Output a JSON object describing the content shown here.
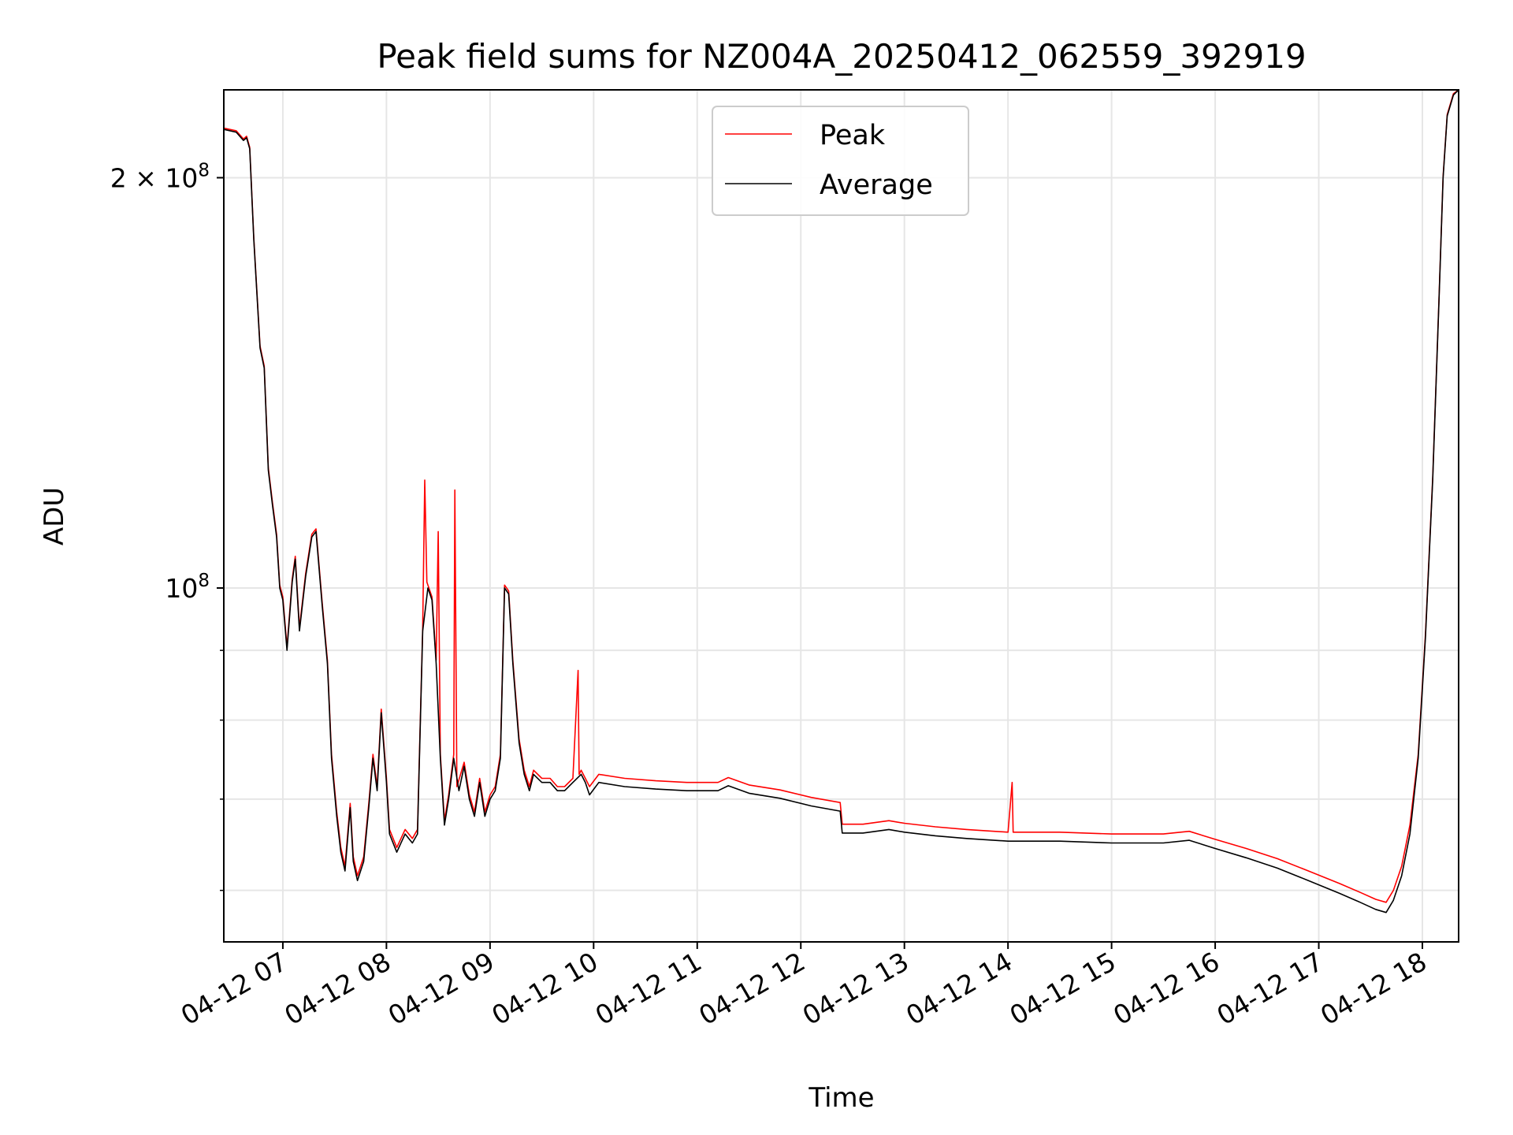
{
  "chart_data": {
    "type": "line",
    "title": "Peak field sums for NZ004A_20250412_062559_392919",
    "xlabel": "Time",
    "ylabel": "ADU",
    "y_scale": "log",
    "grid": true,
    "legend_position": "top-center",
    "x_unit": "time of day on 04-12 (hours)",
    "xlim": [
      6.43,
      18.35
    ],
    "ylim": [
      55000000,
      232000000
    ],
    "x_ticks": [
      {
        "value": 7,
        "label": "04-12 07"
      },
      {
        "value": 8,
        "label": "04-12 08"
      },
      {
        "value": 9,
        "label": "04-12 09"
      },
      {
        "value": 10,
        "label": "04-12 10"
      },
      {
        "value": 11,
        "label": "04-12 11"
      },
      {
        "value": 12,
        "label": "04-12 12"
      },
      {
        "value": 13,
        "label": "04-12 13"
      },
      {
        "value": 14,
        "label": "04-12 14"
      },
      {
        "value": 15,
        "label": "04-12 15"
      },
      {
        "value": 16,
        "label": "04-12 16"
      },
      {
        "value": 17,
        "label": "04-12 17"
      },
      {
        "value": 18,
        "label": "04-12 18"
      }
    ],
    "y_major_ticks": [
      {
        "value": 100000000,
        "base": "10",
        "exp": "8",
        "mantissa": ""
      },
      {
        "value": 200000000,
        "base": "10",
        "exp": "8",
        "mantissa": "2 × "
      }
    ],
    "y_minor_ticks": [
      60000000,
      70000000,
      80000000,
      90000000
    ],
    "series": [
      {
        "name": "Average",
        "color": "#000000",
        "points": [
          [
            6.43,
            217000000
          ],
          [
            6.55,
            216000000
          ],
          [
            6.62,
            213000000
          ],
          [
            6.65,
            214000000
          ],
          [
            6.68,
            210000000
          ],
          [
            6.72,
            180000000
          ],
          [
            6.78,
            150000000
          ],
          [
            6.82,
            145000000
          ],
          [
            6.86,
            122000000
          ],
          [
            6.9,
            115000000
          ],
          [
            6.94,
            109000000
          ],
          [
            6.97,
            100000000
          ],
          [
            7.0,
            98000000
          ],
          [
            7.04,
            90000000
          ],
          [
            7.09,
            101000000
          ],
          [
            7.12,
            105000000
          ],
          [
            7.16,
            93000000
          ],
          [
            7.22,
            102000000
          ],
          [
            7.28,
            109000000
          ],
          [
            7.32,
            110000000
          ],
          [
            7.38,
            97000000
          ],
          [
            7.43,
            88000000
          ],
          [
            7.47,
            75000000
          ],
          [
            7.52,
            68000000
          ],
          [
            7.56,
            64000000
          ],
          [
            7.6,
            62000000
          ],
          [
            7.65,
            69000000
          ],
          [
            7.68,
            63000000
          ],
          [
            7.72,
            61000000
          ],
          [
            7.78,
            63000000
          ],
          [
            7.83,
            69000000
          ],
          [
            7.87,
            75000000
          ],
          [
            7.91,
            71000000
          ],
          [
            7.95,
            81000000
          ],
          [
            8.0,
            72000000
          ],
          [
            8.03,
            66000000
          ],
          [
            8.1,
            64000000
          ],
          [
            8.18,
            66000000
          ],
          [
            8.25,
            65000000
          ],
          [
            8.3,
            66000000
          ],
          [
            8.35,
            93000000
          ],
          [
            8.4,
            100000000
          ],
          [
            8.44,
            98000000
          ],
          [
            8.48,
            88000000
          ],
          [
            8.52,
            75000000
          ],
          [
            8.56,
            67000000
          ],
          [
            8.6,
            70000000
          ],
          [
            8.65,
            75000000
          ],
          [
            8.7,
            71000000
          ],
          [
            8.75,
            74000000
          ],
          [
            8.8,
            70000000
          ],
          [
            8.85,
            68000000
          ],
          [
            8.9,
            72000000
          ],
          [
            8.95,
            68000000
          ],
          [
            9.0,
            70000000
          ],
          [
            9.05,
            71000000
          ],
          [
            9.1,
            75000000
          ],
          [
            9.14,
            100000000
          ],
          [
            9.18,
            99000000
          ],
          [
            9.22,
            88000000
          ],
          [
            9.28,
            77000000
          ],
          [
            9.33,
            73000000
          ],
          [
            9.38,
            71000000
          ],
          [
            9.42,
            73000000
          ],
          [
            9.5,
            72000000
          ],
          [
            9.58,
            72000000
          ],
          [
            9.65,
            71000000
          ],
          [
            9.72,
            71000000
          ],
          [
            9.8,
            72000000
          ],
          [
            9.88,
            73000000
          ],
          [
            9.92,
            72000000
          ],
          [
            9.96,
            70500000
          ],
          [
            10.05,
            72000000
          ],
          [
            10.3,
            71500000
          ],
          [
            10.6,
            71200000
          ],
          [
            10.9,
            71000000
          ],
          [
            11.2,
            71000000
          ],
          [
            11.3,
            71600000
          ],
          [
            11.5,
            70700000
          ],
          [
            11.8,
            70100000
          ],
          [
            12.1,
            69200000
          ],
          [
            12.38,
            68600000
          ],
          [
            12.4,
            66100000
          ],
          [
            12.6,
            66100000
          ],
          [
            12.85,
            66500000
          ],
          [
            13.0,
            66200000
          ],
          [
            13.3,
            65800000
          ],
          [
            13.6,
            65500000
          ],
          [
            14.0,
            65200000
          ],
          [
            14.5,
            65200000
          ],
          [
            15.0,
            65000000
          ],
          [
            15.5,
            65000000
          ],
          [
            15.75,
            65300000
          ],
          [
            16.0,
            64400000
          ],
          [
            16.3,
            63400000
          ],
          [
            16.6,
            62300000
          ],
          [
            16.9,
            61000000
          ],
          [
            17.2,
            59700000
          ],
          [
            17.4,
            58800000
          ],
          [
            17.55,
            58100000
          ],
          [
            17.65,
            57800000
          ],
          [
            17.72,
            59000000
          ],
          [
            17.8,
            61500000
          ],
          [
            17.88,
            66000000
          ],
          [
            17.96,
            75000000
          ],
          [
            18.03,
            92000000
          ],
          [
            18.1,
            120000000
          ],
          [
            18.16,
            162000000
          ],
          [
            18.2,
            200000000
          ],
          [
            18.24,
            222000000
          ],
          [
            18.3,
            230000000
          ],
          [
            18.35,
            232000000
          ]
        ]
      },
      {
        "name": "Peak",
        "color": "#ff0000",
        "points": [
          [
            6.43,
            217500000
          ],
          [
            6.55,
            216500000
          ],
          [
            6.62,
            213500000
          ],
          [
            6.65,
            214500000
          ],
          [
            6.68,
            210500000
          ],
          [
            6.72,
            180500000
          ],
          [
            6.78,
            150500000
          ],
          [
            6.82,
            145500000
          ],
          [
            6.86,
            122500000
          ],
          [
            6.9,
            115500000
          ],
          [
            6.94,
            109500000
          ],
          [
            6.97,
            100500000
          ],
          [
            7.0,
            98500000
          ],
          [
            7.04,
            90500000
          ],
          [
            7.09,
            101500000
          ],
          [
            7.12,
            105500000
          ],
          [
            7.16,
            93500000
          ],
          [
            7.22,
            102500000
          ],
          [
            7.28,
            109500000
          ],
          [
            7.32,
            110500000
          ],
          [
            7.38,
            97500000
          ],
          [
            7.43,
            88500000
          ],
          [
            7.47,
            75500000
          ],
          [
            7.52,
            68500000
          ],
          [
            7.56,
            64500000
          ],
          [
            7.6,
            62500000
          ],
          [
            7.65,
            69500000
          ],
          [
            7.68,
            63500000
          ],
          [
            7.72,
            61500000
          ],
          [
            7.78,
            63500000
          ],
          [
            7.83,
            69500000
          ],
          [
            7.87,
            75500000
          ],
          [
            7.91,
            71500000
          ],
          [
            7.95,
            81500000
          ],
          [
            8.0,
            72500000
          ],
          [
            8.03,
            66500000
          ],
          [
            8.1,
            64500000
          ],
          [
            8.18,
            66500000
          ],
          [
            8.25,
            65500000
          ],
          [
            8.3,
            66500000
          ],
          [
            8.35,
            93500000
          ],
          [
            8.37,
            120000000
          ],
          [
            8.39,
            101000000
          ],
          [
            8.44,
            98500000
          ],
          [
            8.48,
            88500000
          ],
          [
            8.5,
            110000000
          ],
          [
            8.52,
            75500000
          ],
          [
            8.56,
            67500000
          ],
          [
            8.6,
            70500000
          ],
          [
            8.65,
            75500000
          ],
          [
            8.66,
            118000000
          ],
          [
            8.68,
            71500000
          ],
          [
            8.75,
            74500000
          ],
          [
            8.8,
            70500000
          ],
          [
            8.85,
            68500000
          ],
          [
            8.9,
            72500000
          ],
          [
            8.95,
            68500000
          ],
          [
            9.0,
            70500000
          ],
          [
            9.05,
            71500000
          ],
          [
            9.1,
            75500000
          ],
          [
            9.14,
            100500000
          ],
          [
            9.18,
            99500000
          ],
          [
            9.22,
            88500000
          ],
          [
            9.28,
            77500000
          ],
          [
            9.33,
            73500000
          ],
          [
            9.38,
            71500000
          ],
          [
            9.42,
            73500000
          ],
          [
            9.5,
            72500000
          ],
          [
            9.58,
            72500000
          ],
          [
            9.65,
            71500000
          ],
          [
            9.72,
            71500000
          ],
          [
            9.8,
            72500000
          ],
          [
            9.85,
            87000000
          ],
          [
            9.86,
            73000000
          ],
          [
            9.88,
            73500000
          ],
          [
            9.92,
            72500000
          ],
          [
            9.96,
            71500000
          ],
          [
            10.05,
            73000000
          ],
          [
            10.3,
            72500000
          ],
          [
            10.6,
            72200000
          ],
          [
            10.9,
            72000000
          ],
          [
            11.2,
            72000000
          ],
          [
            11.3,
            72600000
          ],
          [
            11.5,
            71700000
          ],
          [
            11.8,
            71100000
          ],
          [
            12.1,
            70200000
          ],
          [
            12.38,
            69600000
          ],
          [
            12.4,
            67100000
          ],
          [
            12.6,
            67100000
          ],
          [
            12.85,
            67500000
          ],
          [
            13.0,
            67200000
          ],
          [
            13.3,
            66800000
          ],
          [
            13.6,
            66500000
          ],
          [
            14.0,
            66200000
          ],
          [
            14.04,
            72000000
          ],
          [
            14.05,
            66200000
          ],
          [
            14.5,
            66200000
          ],
          [
            15.0,
            66000000
          ],
          [
            15.5,
            66000000
          ],
          [
            15.75,
            66300000
          ],
          [
            16.0,
            65400000
          ],
          [
            16.3,
            64400000
          ],
          [
            16.6,
            63300000
          ],
          [
            16.9,
            62000000
          ],
          [
            17.2,
            60700000
          ],
          [
            17.4,
            59800000
          ],
          [
            17.55,
            59100000
          ],
          [
            17.65,
            58800000
          ],
          [
            17.72,
            60000000
          ],
          [
            17.8,
            62500000
          ],
          [
            17.88,
            67000000
          ],
          [
            17.96,
            75500000
          ],
          [
            18.03,
            92500000
          ],
          [
            18.1,
            120500000
          ],
          [
            18.16,
            162500000
          ],
          [
            18.2,
            200500000
          ],
          [
            18.24,
            222500000
          ],
          [
            18.3,
            230500000
          ],
          [
            18.35,
            232000000
          ]
        ]
      }
    ]
  }
}
